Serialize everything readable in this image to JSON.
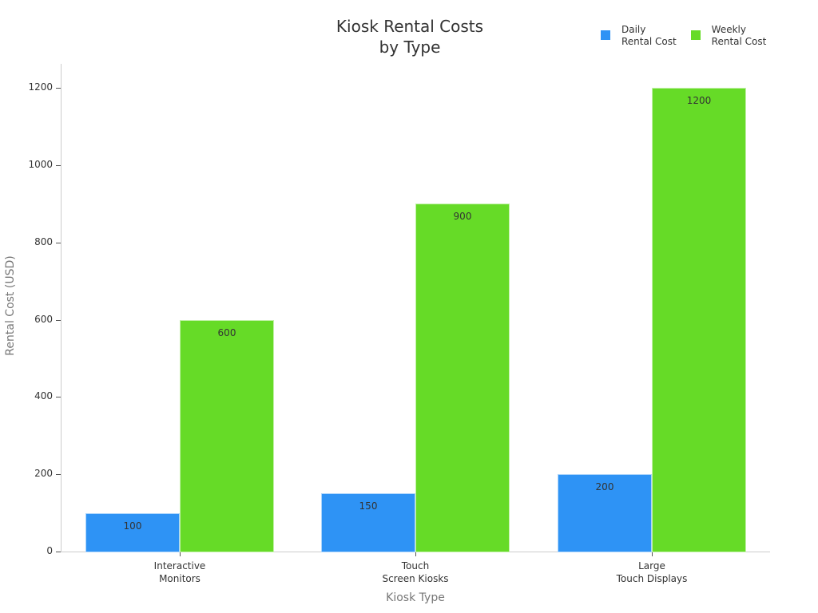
{
  "chart_data": {
    "type": "bar",
    "title": "Kiosk Rental Costs by Type",
    "title_lines": [
      "Kiosk Rental Costs",
      "by Type"
    ],
    "xlabel": "Kiosk Type",
    "ylabel": "Rental Cost (USD)",
    "categories": [
      "Interactive Monitors",
      "Touch Screen Kiosks",
      "Large Touch Displays"
    ],
    "category_lines": [
      [
        "Interactive",
        "Monitors"
      ],
      [
        "Touch",
        "Screen Kiosks"
      ],
      [
        "Large",
        "Touch Displays"
      ]
    ],
    "series": [
      {
        "name": "Daily Rental Cost",
        "name_lines": [
          "Daily",
          "Rental Cost"
        ],
        "color": "#2E93F5",
        "values": [
          100,
          150,
          200
        ]
      },
      {
        "name": "Weekly Rental Cost",
        "name_lines": [
          "Weekly",
          "Rental Cost"
        ],
        "color": "#66DB27",
        "values": [
          600,
          900,
          1200
        ]
      }
    ],
    "ylim": [
      0,
      1260
    ],
    "yticks": [
      0,
      200,
      400,
      600,
      800,
      1000,
      1200
    ],
    "grid": false,
    "legend_position": "top-right",
    "data_labels": true
  }
}
